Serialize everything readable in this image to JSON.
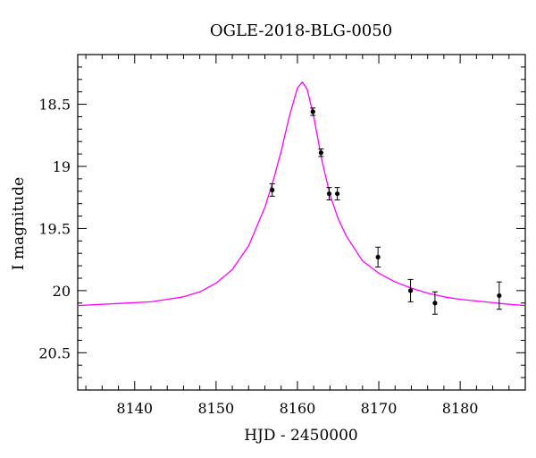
{
  "chart_data": {
    "type": "scatter",
    "title": "OGLE-2018-BLG-0050",
    "xlabel": "HJD - 2450000",
    "ylabel": "I magnitude",
    "xlim": [
      8133,
      8188
    ],
    "ylim": [
      20.8,
      18.1
    ],
    "y_inverted": true,
    "grid": false,
    "legend": "none",
    "x_ticks": [
      8140,
      8150,
      8160,
      8170,
      8180
    ],
    "x_tick_labels": [
      "8140",
      "8150",
      "8160",
      "8170",
      "8180"
    ],
    "y_ticks": [
      18.5,
      19,
      19.5,
      20,
      20.5
    ],
    "y_tick_labels": [
      "18.5",
      "19",
      "19.5",
      "20",
      "20.5"
    ],
    "series": [
      {
        "kind": "points_with_errorbars",
        "color": "#000000",
        "points": [
          {
            "x": 8156.9,
            "y": 19.19,
            "err": 0.05
          },
          {
            "x": 8161.9,
            "y": 18.56,
            "err": 0.03
          },
          {
            "x": 8162.9,
            "y": 18.89,
            "err": 0.03
          },
          {
            "x": 8163.9,
            "y": 19.22,
            "err": 0.05
          },
          {
            "x": 8164.9,
            "y": 19.22,
            "err": 0.05
          },
          {
            "x": 8169.9,
            "y": 19.73,
            "err": 0.08
          },
          {
            "x": 8173.9,
            "y": 20.0,
            "err": 0.09
          },
          {
            "x": 8176.9,
            "y": 20.1,
            "err": 0.09
          },
          {
            "x": 8184.8,
            "y": 20.04,
            "err": 0.11
          }
        ]
      },
      {
        "kind": "model_curve",
        "color": "#ff00ff",
        "points": [
          [
            8133,
            20.12
          ],
          [
            8136,
            20.11
          ],
          [
            8139,
            20.1
          ],
          [
            8142,
            20.09
          ],
          [
            8144,
            20.07
          ],
          [
            8146,
            20.05
          ],
          [
            8148,
            20.01
          ],
          [
            8150,
            19.94
          ],
          [
            8152,
            19.83
          ],
          [
            8154,
            19.64
          ],
          [
            8156,
            19.33
          ],
          [
            8157,
            19.12
          ],
          [
            8158,
            18.88
          ],
          [
            8159,
            18.6
          ],
          [
            8160,
            18.37
          ],
          [
            8160.6,
            18.32
          ],
          [
            8161.2,
            18.38
          ],
          [
            8162,
            18.6
          ],
          [
            8163,
            18.95
          ],
          [
            8164,
            19.23
          ],
          [
            8165,
            19.42
          ],
          [
            8166,
            19.56
          ],
          [
            8168,
            19.76
          ],
          [
            8170,
            19.86
          ],
          [
            8172,
            19.93
          ],
          [
            8174,
            19.98
          ],
          [
            8176,
            20.02
          ],
          [
            8178,
            20.05
          ],
          [
            8180,
            20.07
          ],
          [
            8183,
            20.09
          ],
          [
            8186,
            20.11
          ],
          [
            8188,
            20.12
          ]
        ]
      }
    ]
  }
}
